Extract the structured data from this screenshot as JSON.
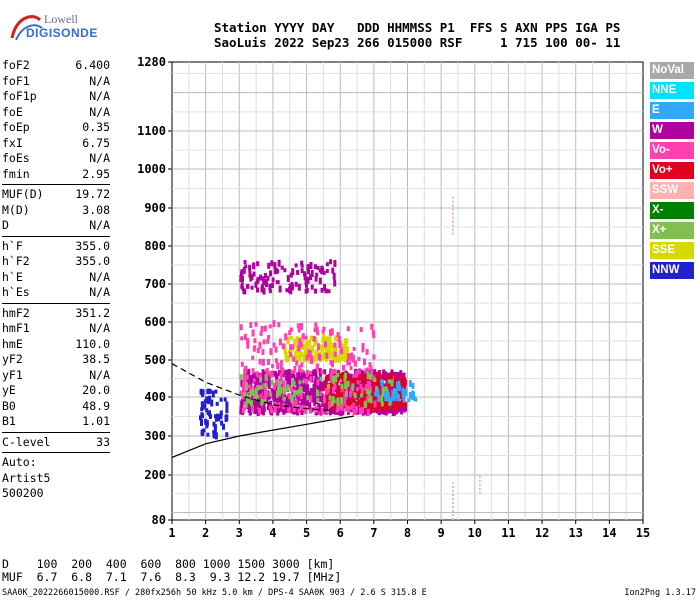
{
  "logo": {
    "line1": "Lowell",
    "line2": "DIGISONDE"
  },
  "header": {
    "line1": "Station YYYY DAY   DDD HHMMSS P1  FFS S AXN PPS IGA PS",
    "line2": "SaoLuis 2022 Sep23 266 015000 RSF     1 715 100 00- 11"
  },
  "params_group1": [
    {
      "name": "foF2",
      "value": "6.400"
    },
    {
      "name": "foF1",
      "value": "N/A"
    },
    {
      "name": "foF1p",
      "value": "N/A"
    },
    {
      "name": "foE",
      "value": "N/A"
    },
    {
      "name": "foEp",
      "value": "0.35"
    },
    {
      "name": "fxI",
      "value": "6.75"
    },
    {
      "name": "foEs",
      "value": "N/A"
    },
    {
      "name": "fmin",
      "value": "2.95"
    }
  ],
  "params_group2": [
    {
      "name": "MUF(D)",
      "value": "19.72"
    },
    {
      "name": "M(D)",
      "value": "3.08"
    },
    {
      "name": "D",
      "value": "N/A"
    }
  ],
  "params_group3": [
    {
      "name": "h`F",
      "value": "355.0"
    },
    {
      "name": "h`F2",
      "value": "355.0"
    },
    {
      "name": "h`E",
      "value": "N/A"
    },
    {
      "name": "h`Es",
      "value": "N/A"
    }
  ],
  "params_group4": [
    {
      "name": "hmF2",
      "value": "351.2"
    },
    {
      "name": "hmF1",
      "value": "N/A"
    },
    {
      "name": "hmE",
      "value": "110.0"
    },
    {
      "name": "yF2",
      "value": "38.5"
    },
    {
      "name": "yF1",
      "value": "N/A"
    },
    {
      "name": "yE",
      "value": "20.0"
    },
    {
      "name": "B0",
      "value": "48.9"
    },
    {
      "name": "B1",
      "value": "1.01"
    }
  ],
  "params_group5": [
    {
      "name": "C-level",
      "value": "33"
    }
  ],
  "auto": {
    "line1": "Auto:",
    "line2": "Artist5",
    "line3": "500200"
  },
  "legend": [
    {
      "label": "NoVal",
      "color": "#a8a8a8"
    },
    {
      "label": "NNE",
      "color": "#00e0ff"
    },
    {
      "label": "E",
      "color": "#30a8ff"
    },
    {
      "label": "W",
      "color": "#b000a0"
    },
    {
      "label": "Vo-",
      "color": "#ff40b0"
    },
    {
      "label": "Vo+",
      "color": "#e00020"
    },
    {
      "label": "SSW",
      "color": "#ffb0b0"
    },
    {
      "label": "X-",
      "color": "#008000"
    },
    {
      "label": "X+",
      "color": "#80c050"
    },
    {
      "label": "SSE",
      "color": "#d8d800"
    },
    {
      "label": "NNW",
      "color": "#2020d0"
    }
  ],
  "bottom": {
    "line1": "D    100  200  400  600  800 1000 1500 3000 [km]",
    "line2": "MUF  6.7  6.8  7.1  7.6  8.3  9.3 12.2 19.7 [MHz]"
  },
  "footer": {
    "left": "SAA0K_2022266015000.RSF / 280fx256h 50 kHz 5.0 km / DPS-4 SAA0K 903 / 2.6 S 315.8 E",
    "right": "Ion2Png 1.3.17"
  },
  "chart_data": {
    "type": "scatter",
    "title": "",
    "xlabel": "",
    "ylabel": "",
    "xlim": [
      1,
      15
    ],
    "ylim": [
      80,
      1280
    ],
    "x_ticks": [
      "1",
      "2",
      "3",
      "4",
      "5",
      "6",
      "7",
      "8",
      "9",
      "10",
      "11",
      "12",
      "13",
      "14",
      "15"
    ],
    "y_ticks": [
      "80",
      "200",
      "300",
      "400",
      "500",
      "600",
      "700",
      "800",
      "900",
      "1000",
      "1100",
      "1280"
    ],
    "y_scale": "quasi-log",
    "clusters": [
      {
        "name": "W",
        "xmin": 3.0,
        "xmax": 7.9,
        "ymin": 360,
        "ymax": 470,
        "count": 900,
        "color": "#b000a0"
      },
      {
        "name": "Vo+",
        "xmin": 5.5,
        "xmax": 7.9,
        "ymin": 370,
        "ymax": 460,
        "count": 300,
        "color": "#e00020"
      },
      {
        "name": "SSE",
        "xmin": 4.3,
        "xmax": 6.2,
        "ymin": 500,
        "ymax": 560,
        "count": 150,
        "color": "#d8d800"
      },
      {
        "name": "W-upper",
        "xmin": 3.0,
        "xmax": 5.8,
        "ymin": 680,
        "ymax": 760,
        "count": 110,
        "color": "#b000a0"
      },
      {
        "name": "Vo-",
        "xmin": 3.0,
        "xmax": 7.0,
        "ymin": 360,
        "ymax": 600,
        "count": 260,
        "color": "#ff40b0"
      },
      {
        "name": "X+",
        "xmin": 3.0,
        "xmax": 7.5,
        "ymin": 380,
        "ymax": 460,
        "count": 90,
        "color": "#80c050"
      },
      {
        "name": "NNW",
        "xmin": 1.8,
        "xmax": 2.6,
        "ymin": 300,
        "ymax": 420,
        "count": 60,
        "color": "#2020d0"
      },
      {
        "name": "E",
        "xmin": 7.0,
        "xmax": 8.2,
        "ymin": 390,
        "ymax": 440,
        "count": 40,
        "color": "#30a8ff"
      }
    ],
    "curves": [
      {
        "name": "profile",
        "style": "solid",
        "points": [
          [
            1.0,
            245
          ],
          [
            2.0,
            280
          ],
          [
            3.0,
            300
          ],
          [
            4.0,
            315
          ],
          [
            5.0,
            330
          ],
          [
            6.0,
            345
          ],
          [
            6.4,
            351
          ]
        ]
      },
      {
        "name": "profile-dashed",
        "style": "dashed",
        "points": [
          [
            1.0,
            490
          ],
          [
            2.0,
            440
          ],
          [
            3.0,
            405
          ],
          [
            4.0,
            380
          ],
          [
            5.0,
            370
          ],
          [
            5.8,
            365
          ]
        ]
      }
    ],
    "ssw_bars": [
      {
        "x": 9.35,
        "ymin": 830,
        "ymax": 930
      },
      {
        "x": 9.35,
        "ymin": 80,
        "ymax": 180
      },
      {
        "x": 10.15,
        "ymin": 150,
        "ymax": 200
      }
    ]
  }
}
